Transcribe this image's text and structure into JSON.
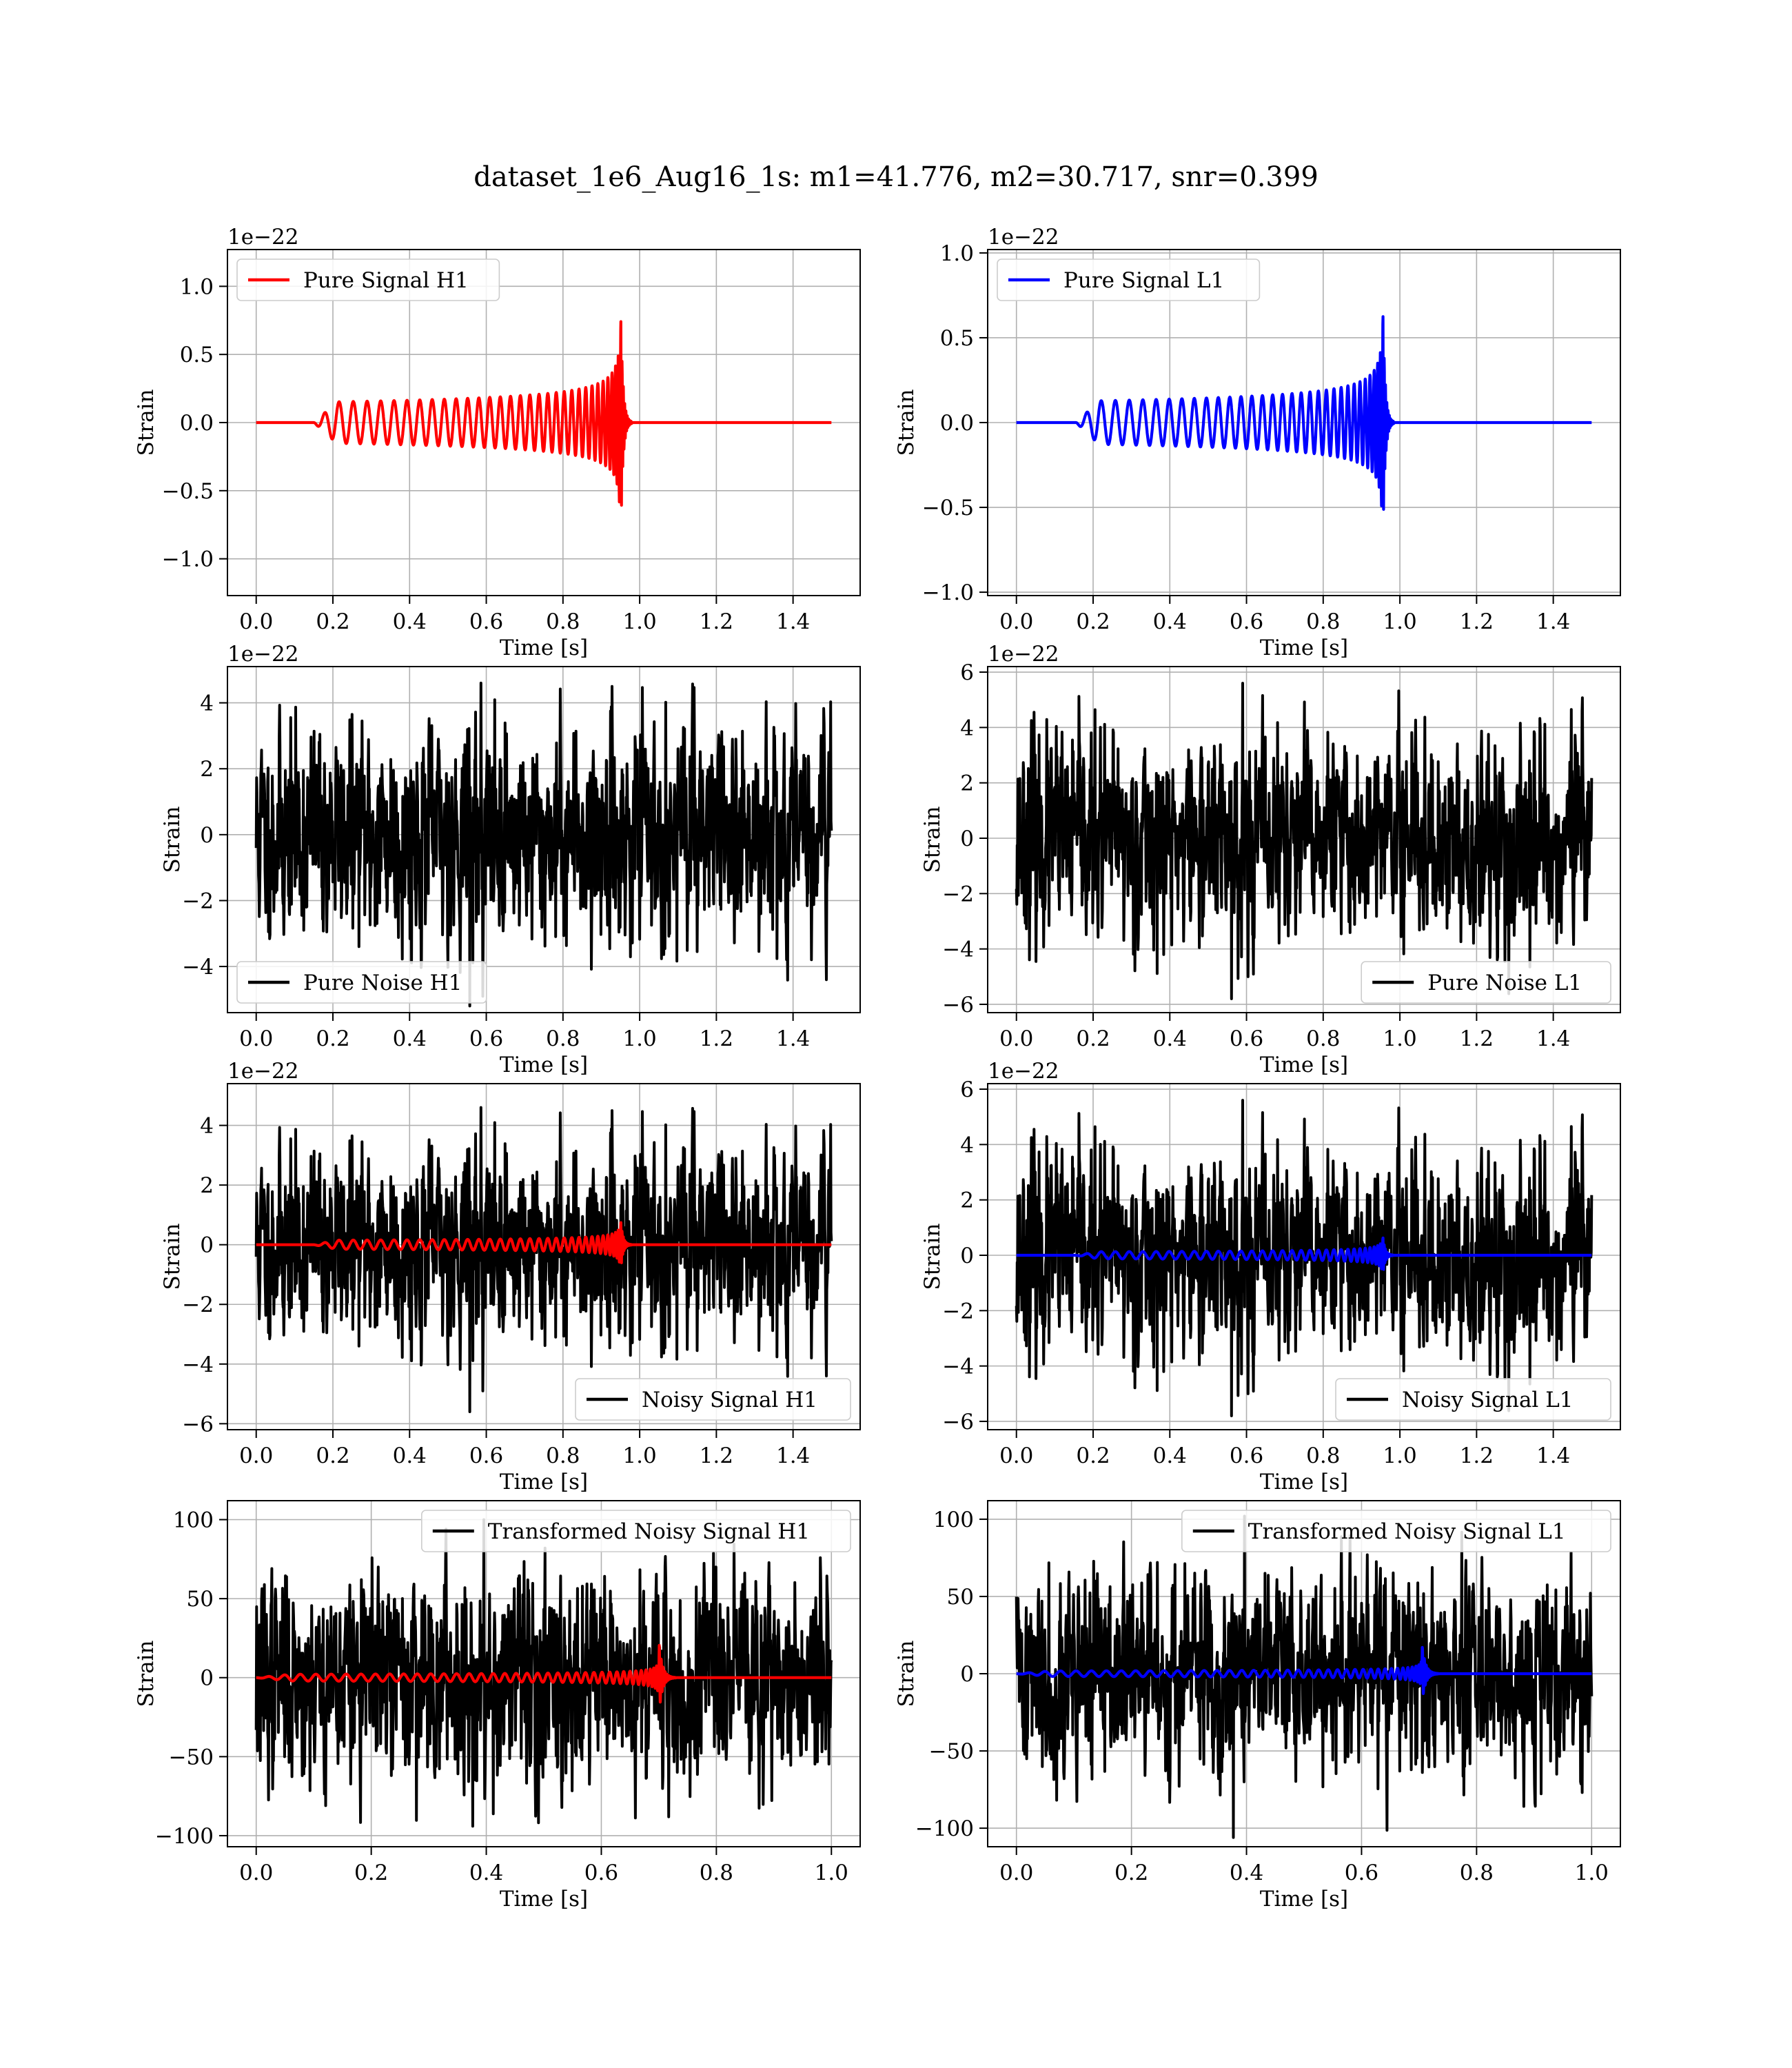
{
  "figure": {
    "title": "dataset_1e6_Aug16_1s: m1=41.776, m2=30.717, snr=0.399"
  },
  "colors": {
    "red": "#ff0000",
    "blue": "#0000ff",
    "black": "#000000",
    "grid": "#b0b0b0"
  },
  "chart_data": [
    {
      "id": "p1",
      "type": "line",
      "xlabel": "Time [s]",
      "ylabel": "Strain",
      "offset_text": "1e−22",
      "xlim": [
        -0.075,
        1.575
      ],
      "ylim": [
        -1.27,
        1.27
      ],
      "xticks": [
        0.0,
        0.2,
        0.4,
        0.6,
        0.8,
        1.0,
        1.2,
        1.4
      ],
      "xtick_labels": [
        "0.0",
        "0.2",
        "0.4",
        "0.6",
        "0.8",
        "1.0",
        "1.2",
        "1.4"
      ],
      "yticks": [
        -1.0,
        -0.5,
        0.0,
        0.5,
        1.0
      ],
      "ytick_labels": [
        "−1.0",
        "−0.5",
        "0.0",
        "0.5",
        "1.0"
      ],
      "grid": true,
      "legend_loc": "upper-left",
      "legend_entries": [
        "Pure Signal H1"
      ],
      "series": [
        {
          "name": "Pure Signal H1",
          "color": "#ff0000",
          "kind": "chirp",
          "tstart": 0.15,
          "tc": 0.95,
          "amp": 1.15,
          "duration": 1.5,
          "sign": 1
        }
      ]
    },
    {
      "id": "p2",
      "type": "line",
      "xlabel": "Time [s]",
      "ylabel": "Strain",
      "offset_text": "1e−22",
      "xlim": [
        -0.075,
        1.575
      ],
      "ylim": [
        -1.02,
        1.02
      ],
      "xticks": [
        0.0,
        0.2,
        0.4,
        0.6,
        0.8,
        1.0,
        1.2,
        1.4
      ],
      "xtick_labels": [
        "0.0",
        "0.2",
        "0.4",
        "0.6",
        "0.8",
        "1.0",
        "1.2",
        "1.4"
      ],
      "yticks": [
        -1.0,
        -0.5,
        0.0,
        0.5,
        1.0
      ],
      "ytick_labels": [
        "−1.0",
        "−0.5",
        "0.0",
        "0.5",
        "1.0"
      ],
      "grid": true,
      "legend_loc": "upper-left",
      "legend_entries": [
        "Pure Signal L1"
      ],
      "series": [
        {
          "name": "Pure Signal L1",
          "color": "#0000ff",
          "kind": "chirp",
          "tstart": 0.155,
          "tc": 0.955,
          "amp": 0.97,
          "duration": 1.5,
          "sign": 1
        }
      ]
    },
    {
      "id": "p3",
      "type": "line",
      "xlabel": "Time [s]",
      "ylabel": "Strain",
      "offset_text": "1e−22",
      "xlim": [
        -0.075,
        1.575
      ],
      "ylim": [
        -5.4,
        5.1
      ],
      "xticks": [
        0.0,
        0.2,
        0.4,
        0.6,
        0.8,
        1.0,
        1.2,
        1.4
      ],
      "xtick_labels": [
        "0.0",
        "0.2",
        "0.4",
        "0.6",
        "0.8",
        "1.0",
        "1.2",
        "1.4"
      ],
      "yticks": [
        -4,
        -2,
        0,
        2,
        4
      ],
      "ytick_labels": [
        "−4",
        "−2",
        "0",
        "2",
        "4"
      ],
      "grid": true,
      "legend_loc": "lower-left",
      "legend_entries": [
        "Pure Noise H1"
      ],
      "series": [
        {
          "name": "Pure Noise H1",
          "color": "#000000",
          "kind": "noise",
          "seed": 11,
          "sigma": 1.45,
          "max": 4.6,
          "min": -5.2,
          "duration": 1.5,
          "n": 1500
        }
      ]
    },
    {
      "id": "p4",
      "type": "line",
      "xlabel": "Time [s]",
      "ylabel": "Strain",
      "offset_text": "1e−22",
      "xlim": [
        -0.075,
        1.575
      ],
      "ylim": [
        -6.3,
        6.2
      ],
      "xticks": [
        0.0,
        0.2,
        0.4,
        0.6,
        0.8,
        1.0,
        1.2,
        1.4
      ],
      "xtick_labels": [
        "0.0",
        "0.2",
        "0.4",
        "0.6",
        "0.8",
        "1.0",
        "1.2",
        "1.4"
      ],
      "yticks": [
        -6,
        -4,
        -2,
        0,
        2,
        4,
        6
      ],
      "ytick_labels": [
        "−6",
        "−4",
        "−2",
        "0",
        "2",
        "4",
        "6"
      ],
      "grid": true,
      "legend_loc": "lower-right",
      "legend_entries": [
        "Pure Noise L1"
      ],
      "series": [
        {
          "name": "Pure Noise L1",
          "color": "#000000",
          "kind": "noise",
          "seed": 23,
          "sigma": 1.65,
          "max": 5.6,
          "min": -5.8,
          "duration": 1.5,
          "n": 1500
        }
      ]
    },
    {
      "id": "p5",
      "type": "line",
      "xlabel": "Time [s]",
      "ylabel": "Strain",
      "offset_text": "1e−22",
      "xlim": [
        -0.075,
        1.575
      ],
      "ylim": [
        -6.2,
        5.4
      ],
      "xticks": [
        0.0,
        0.2,
        0.4,
        0.6,
        0.8,
        1.0,
        1.2,
        1.4
      ],
      "xtick_labels": [
        "0.0",
        "0.2",
        "0.4",
        "0.6",
        "0.8",
        "1.0",
        "1.2",
        "1.4"
      ],
      "yticks": [
        -6,
        -4,
        -2,
        0,
        2,
        4
      ],
      "ytick_labels": [
        "−6",
        "−4",
        "−2",
        "0",
        "2",
        "4"
      ],
      "grid": true,
      "legend_loc": "lower-right",
      "legend_entries": [
        "Noisy Signal H1"
      ],
      "series": [
        {
          "name": "Noisy Signal H1",
          "color": "#000000",
          "kind": "noise",
          "seed": 11,
          "sigma": 1.45,
          "max": 4.6,
          "min": -5.6,
          "duration": 1.5,
          "n": 1500
        },
        {
          "color": "#ff0000",
          "kind": "chirp",
          "tstart": 0.15,
          "tc": 0.95,
          "amp": 1.15,
          "duration": 1.5,
          "sign": 1
        }
      ]
    },
    {
      "id": "p6",
      "type": "line",
      "xlabel": "Time [s]",
      "ylabel": "Strain",
      "offset_text": "1e−22",
      "xlim": [
        -0.075,
        1.575
      ],
      "ylim": [
        -6.3,
        6.2
      ],
      "xticks": [
        0.0,
        0.2,
        0.4,
        0.6,
        0.8,
        1.0,
        1.2,
        1.4
      ],
      "xtick_labels": [
        "0.0",
        "0.2",
        "0.4",
        "0.6",
        "0.8",
        "1.0",
        "1.2",
        "1.4"
      ],
      "yticks": [
        -6,
        -4,
        -2,
        0,
        2,
        4,
        6
      ],
      "ytick_labels": [
        "−6",
        "−4",
        "−2",
        "0",
        "2",
        "4",
        "6"
      ],
      "grid": true,
      "legend_loc": "lower-right",
      "legend_entries": [
        "Noisy Signal L1"
      ],
      "series": [
        {
          "name": "Noisy Signal L1",
          "color": "#000000",
          "kind": "noise",
          "seed": 23,
          "sigma": 1.65,
          "max": 5.6,
          "min": -5.8,
          "duration": 1.5,
          "n": 1500
        },
        {
          "color": "#0000ff",
          "kind": "chirp",
          "tstart": 0.155,
          "tc": 0.955,
          "amp": 0.97,
          "duration": 1.5,
          "sign": 1
        }
      ]
    },
    {
      "id": "p7",
      "type": "line",
      "xlabel": "Time [s]",
      "ylabel": "Strain",
      "offset_text": "",
      "xlim": [
        -0.05,
        1.05
      ],
      "ylim": [
        -107,
        112
      ],
      "xticks": [
        0.0,
        0.2,
        0.4,
        0.6,
        0.8,
        1.0
      ],
      "xtick_labels": [
        "0.0",
        "0.2",
        "0.4",
        "0.6",
        "0.8",
        "1.0"
      ],
      "yticks": [
        -100,
        -50,
        0,
        50,
        100
      ],
      "ytick_labels": [
        "−100",
        "−50",
        "0",
        "50",
        "100"
      ],
      "grid": true,
      "legend_loc": "upper-right",
      "legend_entries": [
        "Transformed Noisy Signal H1"
      ],
      "series": [
        {
          "name": "Transformed Noisy Signal H1",
          "color": "#000000",
          "kind": "noise",
          "seed": 37,
          "sigma": 30,
          "max": 100,
          "min": -94,
          "duration": 1.0,
          "n": 1400
        },
        {
          "color": "#ff0000",
          "kind": "chirp",
          "tstart": 0.0,
          "tc": 0.7,
          "amp": 30,
          "duration": 1.0,
          "sign": 1,
          "cycles_scale": 1.35,
          "base_amp_frac": 0.07
        }
      ]
    },
    {
      "id": "p8",
      "type": "line",
      "xlabel": "Time [s]",
      "ylabel": "Strain",
      "offset_text": "",
      "xlim": [
        -0.05,
        1.05
      ],
      "ylim": [
        -112,
        112
      ],
      "xticks": [
        0.0,
        0.2,
        0.4,
        0.6,
        0.8,
        1.0
      ],
      "xtick_labels": [
        "0.0",
        "0.2",
        "0.4",
        "0.6",
        "0.8",
        "1.0"
      ],
      "yticks": [
        -100,
        -50,
        0,
        50,
        100
      ],
      "ytick_labels": [
        "−100",
        "−50",
        "0",
        "50",
        "100"
      ],
      "grid": true,
      "legend_loc": "upper-right",
      "legend_entries": [
        "Transformed Noisy Signal L1"
      ],
      "series": [
        {
          "name": "Transformed Noisy Signal L1",
          "color": "#000000",
          "kind": "noise",
          "seed": 41,
          "sigma": 30,
          "max": 102,
          "min": -106,
          "duration": 1.0,
          "n": 1400
        },
        {
          "color": "#0000ff",
          "kind": "chirp",
          "tstart": 0.0,
          "tc": 0.705,
          "amp": 25,
          "duration": 1.0,
          "sign": 1,
          "cycles_scale": 1.35,
          "base_amp_frac": 0.07
        }
      ]
    }
  ]
}
